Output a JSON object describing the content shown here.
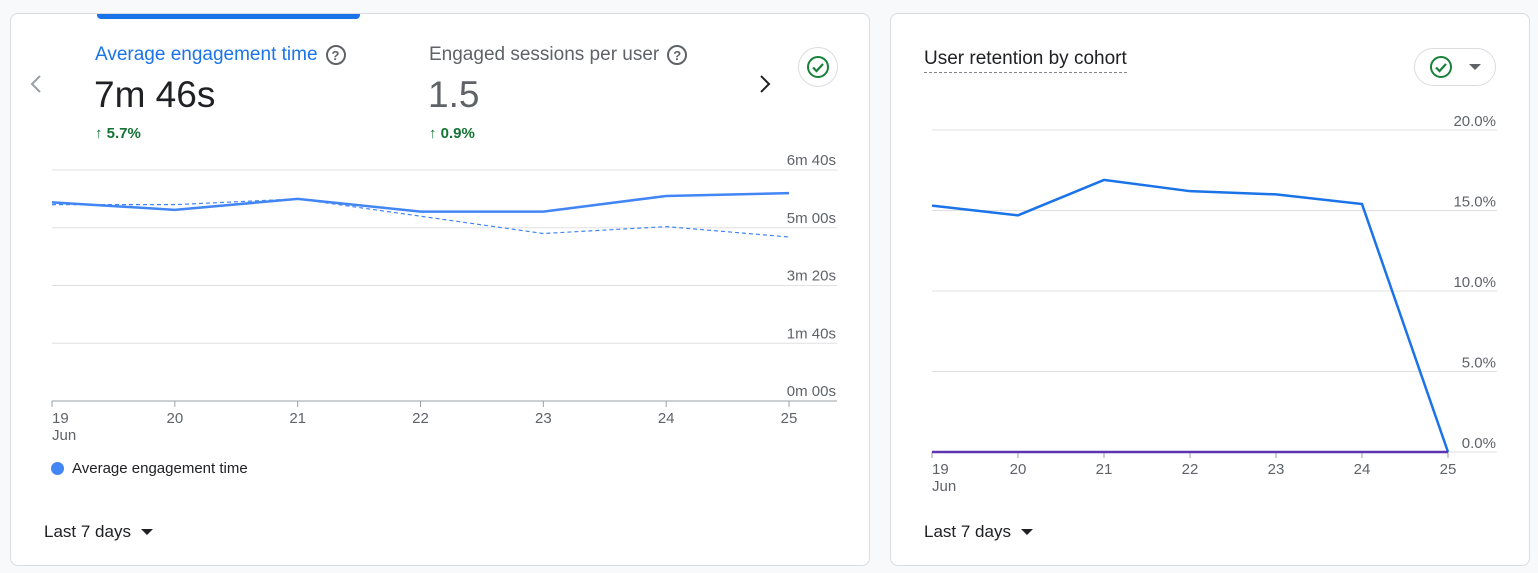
{
  "left_card": {
    "metrics": [
      {
        "label": "Average engagement time",
        "value": "7m 46s",
        "change": "5.7%",
        "active": true
      },
      {
        "label": "Engaged sessions per user",
        "value": "1.5",
        "change": "0.9%",
        "active": false
      }
    ],
    "legend_label": "Average engagement time",
    "date_range": "Last 7 days"
  },
  "right_card": {
    "title": "User retention by cohort",
    "date_range": "Last 7 days"
  },
  "colors": {
    "accent": "#1a73e8",
    "series": "#4285f4",
    "positive": "#137333",
    "check": "#188038",
    "cohort_line": "#1a73e8",
    "cohort_baseline": "#5e35b1"
  },
  "icons": {
    "prev": "chevron-left-icon",
    "next": "chevron-right-icon",
    "help": "help-icon",
    "check": "check-circle-icon",
    "caret": "caret-down-icon"
  },
  "chart_data": [
    {
      "type": "line",
      "x": [
        "19",
        "20",
        "21",
        "22",
        "23",
        "24",
        "25"
      ],
      "x_sublabel": "Jun",
      "y_tick_labels": [
        "0m 00s",
        "1m 40s",
        "3m 20s",
        "5m 00s",
        "6m 40s"
      ],
      "y_tick_values": [
        0,
        100,
        200,
        300,
        400
      ],
      "ylim": [
        0,
        400
      ],
      "series": [
        {
          "name": "Average engagement time",
          "style": "solid",
          "values": [
            344,
            331,
            350,
            328,
            328,
            355,
            360
          ]
        },
        {
          "style": "dashed",
          "values": [
            340,
            340,
            350,
            320,
            290,
            302,
            284
          ]
        }
      ]
    },
    {
      "type": "line",
      "x": [
        "19",
        "20",
        "21",
        "22",
        "23",
        "24",
        "25"
      ],
      "x_sublabel": "Jun",
      "y_tick_labels": [
        "0.0%",
        "5.0%",
        "10.0%",
        "15.0%",
        "20.0%"
      ],
      "y_tick_values": [
        0,
        5,
        10,
        15,
        20
      ],
      "ylim": [
        0,
        20
      ],
      "series": [
        {
          "style": "solid",
          "values": [
            15.3,
            14.7,
            16.9,
            16.2,
            16.0,
            15.4,
            0
          ]
        },
        {
          "style": "solid",
          "values": [
            0,
            0,
            0,
            0,
            0,
            0,
            0
          ]
        }
      ]
    }
  ]
}
